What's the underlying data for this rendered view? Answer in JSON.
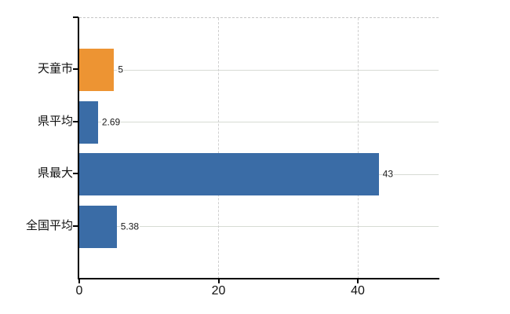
{
  "chart_data": {
    "type": "bar",
    "orientation": "horizontal",
    "title": "",
    "categories": [
      "天童市",
      "県平均",
      "県最大",
      "全国平均"
    ],
    "values": [
      5,
      2.69,
      43,
      5.38
    ],
    "value_labels": [
      "5",
      "2.69",
      "43",
      "5.38"
    ],
    "bar_colors": [
      "#ED9433",
      "#3A6CA6",
      "#3A6CA6",
      "#3A6CA6"
    ],
    "highlight_category": "天童市",
    "x_ticks": [
      0,
      20,
      40
    ],
    "x_tick_labels": [
      "0",
      "20",
      "40"
    ],
    "xlim": [
      0,
      51.6
    ],
    "grid": true,
    "legend": false
  },
  "colors": {
    "highlight_bar": "#ED9433",
    "default_bar": "#3A6CA6",
    "h_gridline": "#D7DBD4",
    "v_gridline": "#CFCFCF",
    "frame_dashed": "#C6C6C6",
    "axis": "#000000",
    "background": "#FFFFFF"
  }
}
